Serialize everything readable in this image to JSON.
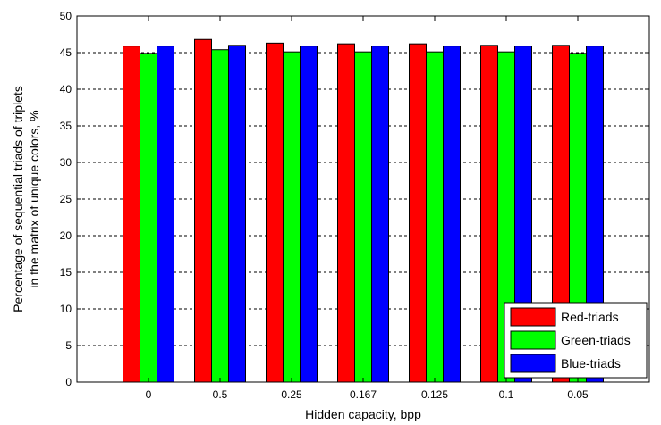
{
  "chart_data": {
    "type": "bar",
    "title": "",
    "xlabel": "Hidden capacity, bpp",
    "ylabel_line1": "Percentage of sequential triads of triplets",
    "ylabel_line2": "in the matrix of unique colors, %",
    "categories": [
      "0",
      "0.5",
      "0.25",
      "0.167",
      "0.125",
      "0.1",
      "0.05"
    ],
    "ylim": [
      0,
      50
    ],
    "yticks": [
      "0",
      "5",
      "10",
      "15",
      "20",
      "25",
      "30",
      "35",
      "40",
      "45",
      "50"
    ],
    "grid": "y-dashed",
    "legend_position": "bottom-right",
    "series": [
      {
        "name": "Red-triads",
        "color": "#ff0000",
        "values": [
          45.9,
          46.8,
          46.3,
          46.2,
          46.2,
          46.0,
          46.0
        ]
      },
      {
        "name": "Green-triads",
        "color": "#00ff00",
        "values": [
          44.9,
          45.4,
          45.1,
          45.1,
          45.1,
          45.1,
          44.9
        ]
      },
      {
        "name": "Blue-triads",
        "color": "#0000ff",
        "values": [
          45.9,
          46.0,
          45.9,
          45.9,
          45.9,
          45.9,
          45.9
        ]
      }
    ]
  }
}
